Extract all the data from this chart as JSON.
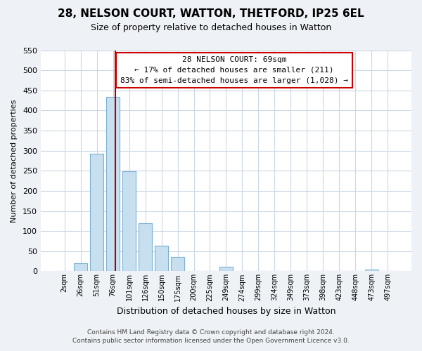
{
  "title": "28, NELSON COURT, WATTON, THETFORD, IP25 6EL",
  "subtitle": "Size of property relative to detached houses in Watton",
  "xlabel": "Distribution of detached houses by size in Watton",
  "ylabel": "Number of detached properties",
  "categories": [
    "2sqm",
    "26sqm",
    "51sqm",
    "76sqm",
    "101sqm",
    "126sqm",
    "150sqm",
    "175sqm",
    "200sqm",
    "225sqm",
    "249sqm",
    "274sqm",
    "299sqm",
    "324sqm",
    "349sqm",
    "373sqm",
    "398sqm",
    "423sqm",
    "448sqm",
    "473sqm",
    "497sqm"
  ],
  "values": [
    0,
    20,
    293,
    433,
    248,
    120,
    63,
    35,
    0,
    0,
    12,
    0,
    0,
    0,
    0,
    0,
    0,
    0,
    0,
    5,
    0
  ],
  "bar_color": "#c8dff0",
  "bar_edge_color": "#7ab0d4",
  "vline_color": "#aa0000",
  "vline_pos": 3.15,
  "ylim": [
    0,
    550
  ],
  "yticks": [
    0,
    50,
    100,
    150,
    200,
    250,
    300,
    350,
    400,
    450,
    500,
    550
  ],
  "annotation_title": "28 NELSON COURT: 69sqm",
  "annotation_line1": "← 17% of detached houses are smaller (211)",
  "annotation_line2": "83% of semi-detached houses are larger (1,028) →",
  "annotation_box_color": "#ffffff",
  "annotation_box_edge": "#cc0000",
  "footer_line1": "Contains HM Land Registry data © Crown copyright and database right 2024.",
  "footer_line2": "Contains public sector information licensed under the Open Government Licence v3.0.",
  "bg_color": "#eef2f6",
  "plot_bg_color": "#ffffff",
  "grid_color": "#ccd8e4"
}
